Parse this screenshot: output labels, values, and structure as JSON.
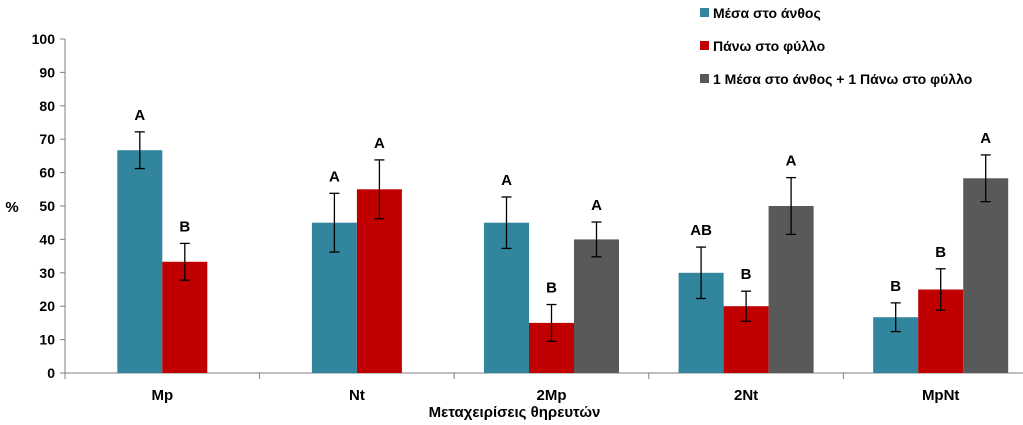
{
  "chart_data": {
    "type": "bar",
    "title": "",
    "xlabel": "Μεταχειρίσεις θηρευτών",
    "ylabel": "%",
    "ylim": [
      0,
      100
    ],
    "yticks": [
      0,
      10,
      20,
      30,
      40,
      50,
      60,
      70,
      80,
      90,
      100
    ],
    "categories": [
      "Mp",
      "Nt",
      "2Mp",
      "2Nt",
      "MpNt"
    ],
    "legend_position": "top-right",
    "grid": false,
    "series": [
      {
        "name": "Μέσα στο άνθος",
        "color": "#31859C",
        "values": [
          66.7,
          45,
          45,
          30,
          16.7
        ],
        "errors": [
          5.5,
          8.8,
          7.7,
          7.7,
          4.3
        ],
        "labels": [
          "A",
          "A",
          "A",
          "AB",
          "B"
        ]
      },
      {
        "name": "Πάνω στο φύλλο",
        "color": "#C00000",
        "values": [
          33.3,
          55,
          15,
          20,
          25
        ],
        "errors": [
          5.5,
          8.8,
          5.5,
          4.5,
          6.2
        ],
        "labels": [
          "B",
          "A",
          "B",
          "B",
          "B"
        ]
      },
      {
        "name": "1 Μέσα στο άνθος + 1 Πάνω στο φύλλο",
        "color": "#595959",
        "values": [
          null,
          null,
          40,
          50,
          58.3
        ],
        "errors": [
          null,
          null,
          5.2,
          8.5,
          7.0
        ],
        "labels": [
          null,
          null,
          "A",
          "A",
          "A"
        ]
      }
    ]
  }
}
